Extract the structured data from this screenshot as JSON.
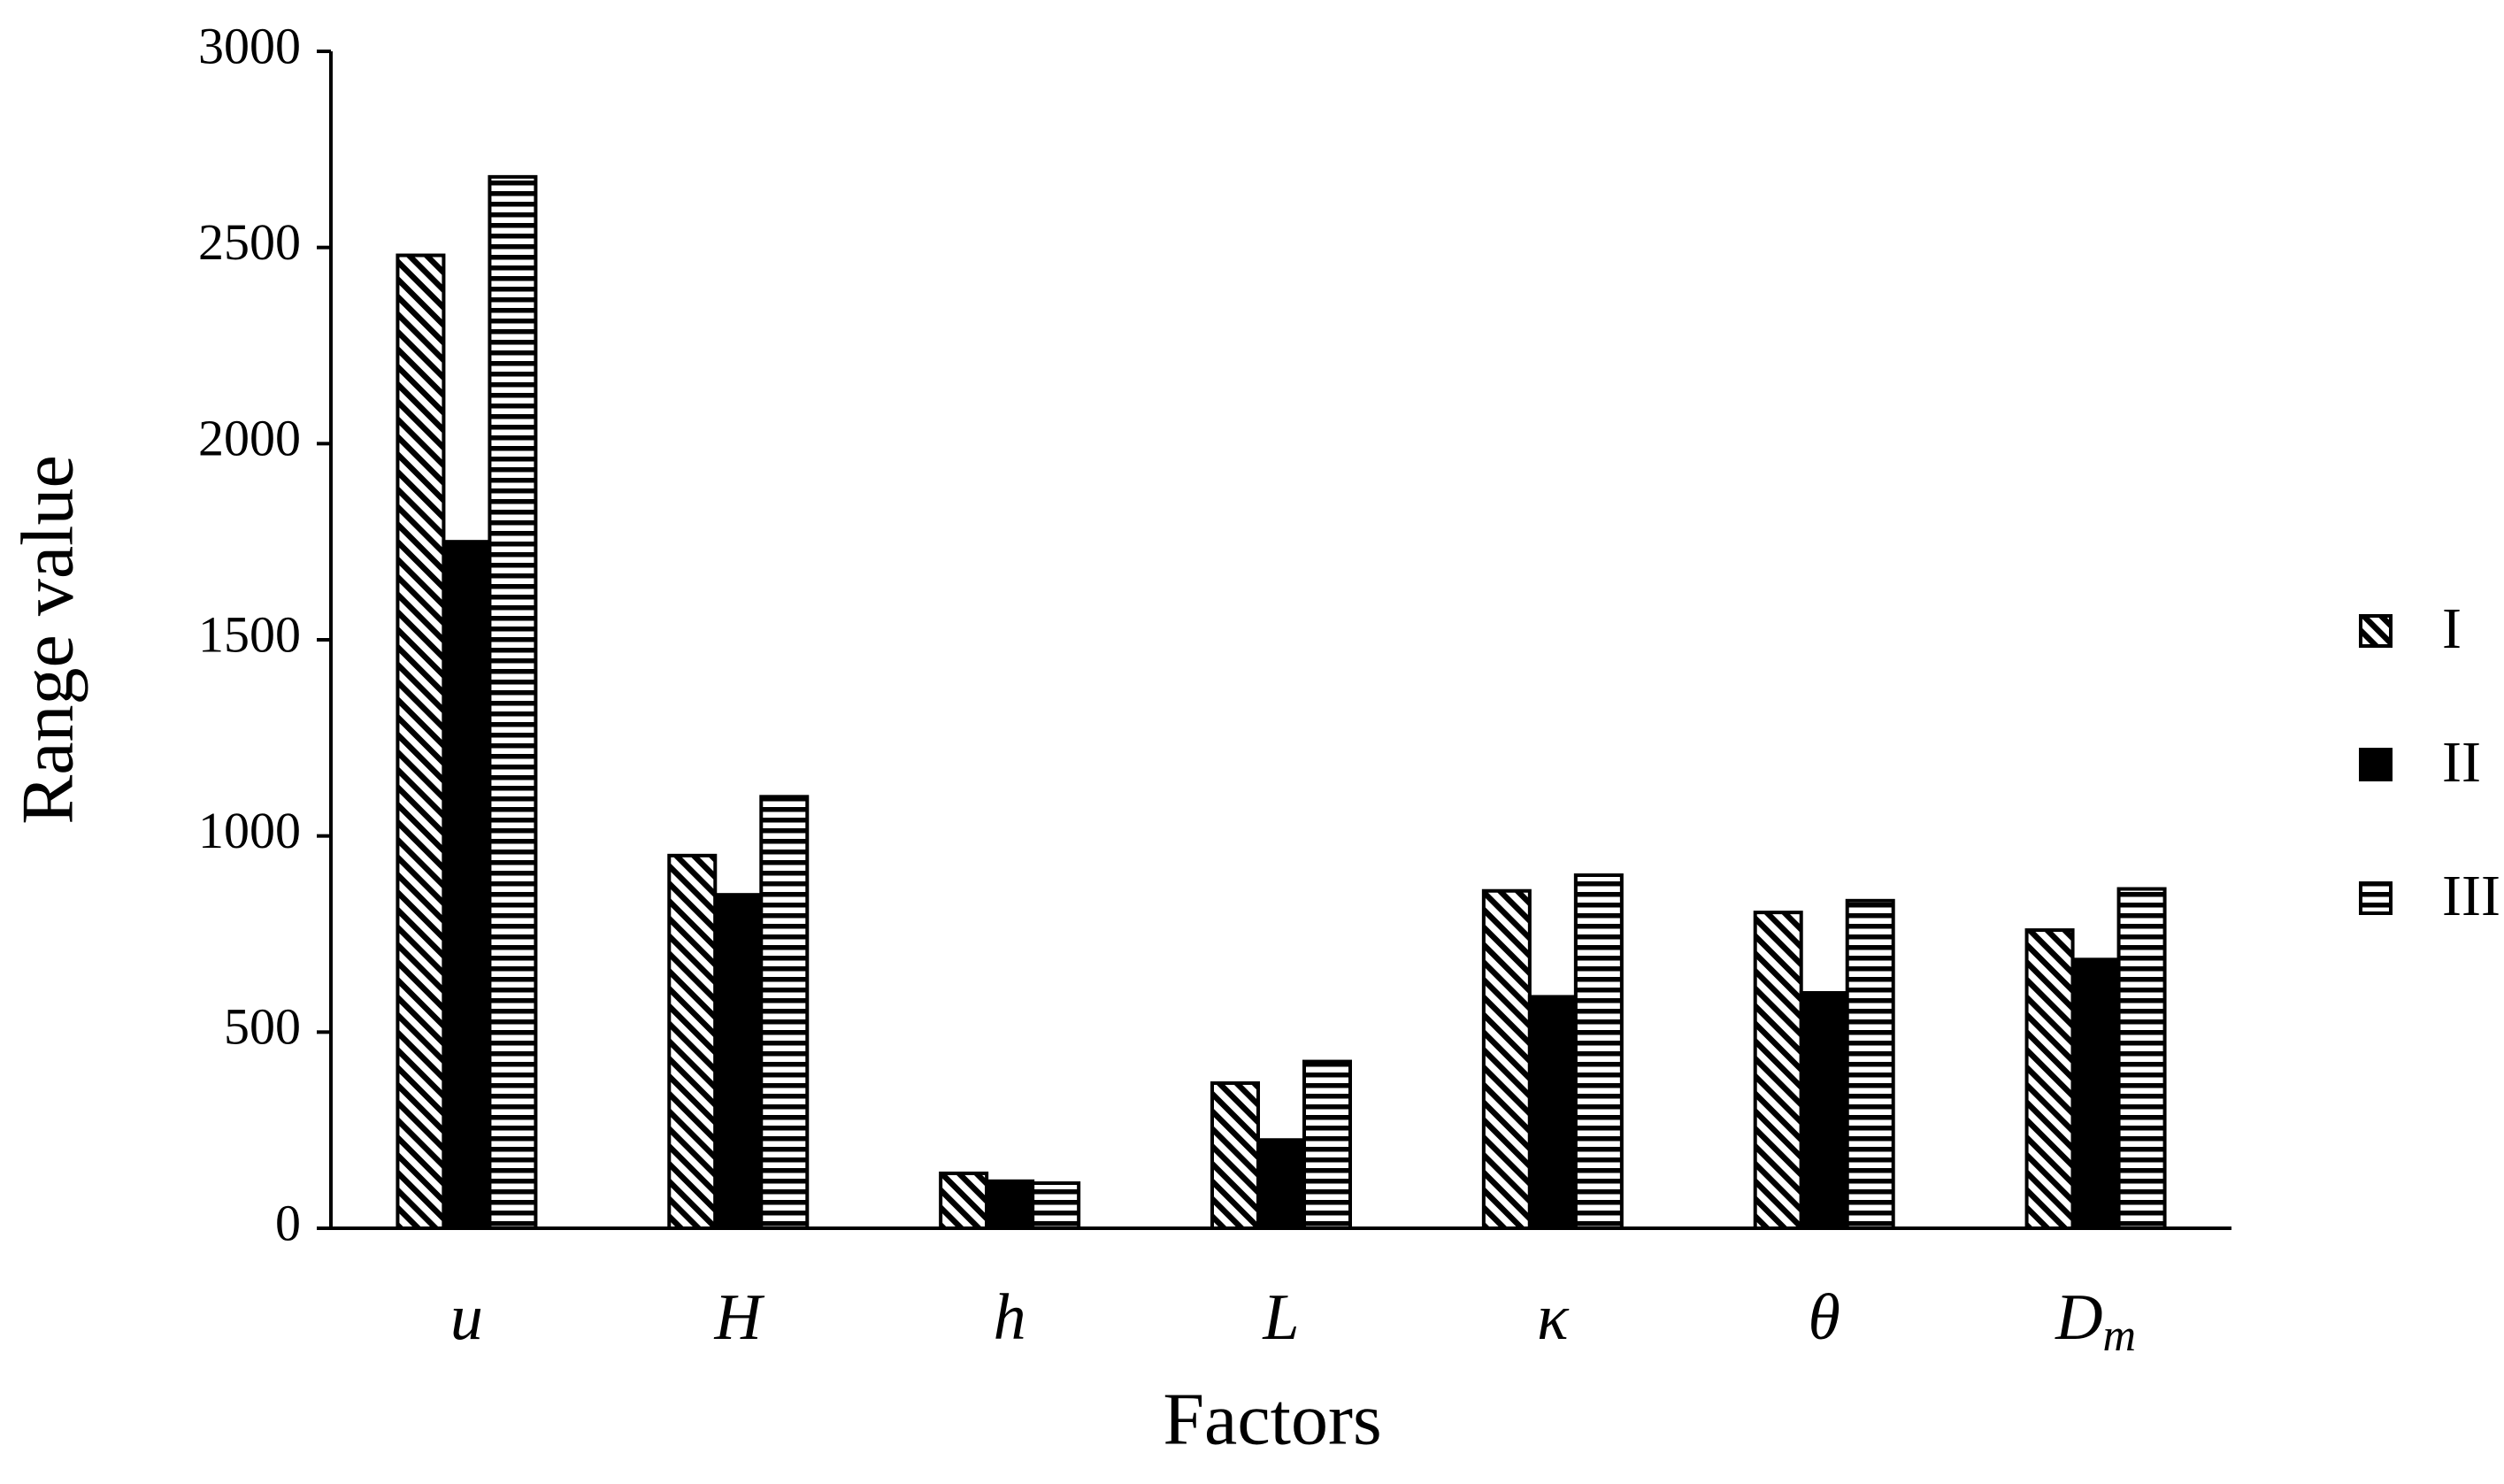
{
  "chart_data": {
    "type": "bar",
    "x_label": "Factors",
    "y_label": "Range value",
    "categories": [
      "u",
      "H",
      "h",
      "L",
      "κ",
      "θ",
      "Dm"
    ],
    "series": [
      {
        "name": "I",
        "color": "#000000",
        "pattern": "diagonal",
        "values": [
          2480,
          950,
          140,
          370,
          860,
          805,
          760
        ]
      },
      {
        "name": "II",
        "color": "#000000",
        "pattern": "solid",
        "values": [
          1750,
          850,
          120,
          225,
          590,
          600,
          685
        ]
      },
      {
        "name": "III",
        "color": "#000000",
        "pattern": "horizontal",
        "values": [
          2680,
          1100,
          115,
          425,
          900,
          835,
          865
        ]
      }
    ],
    "ylim": [
      0,
      3000
    ],
    "yticks": [
      0,
      500,
      1000,
      1500,
      2000,
      2500,
      3000
    ],
    "grid": false,
    "legend": "right"
  }
}
